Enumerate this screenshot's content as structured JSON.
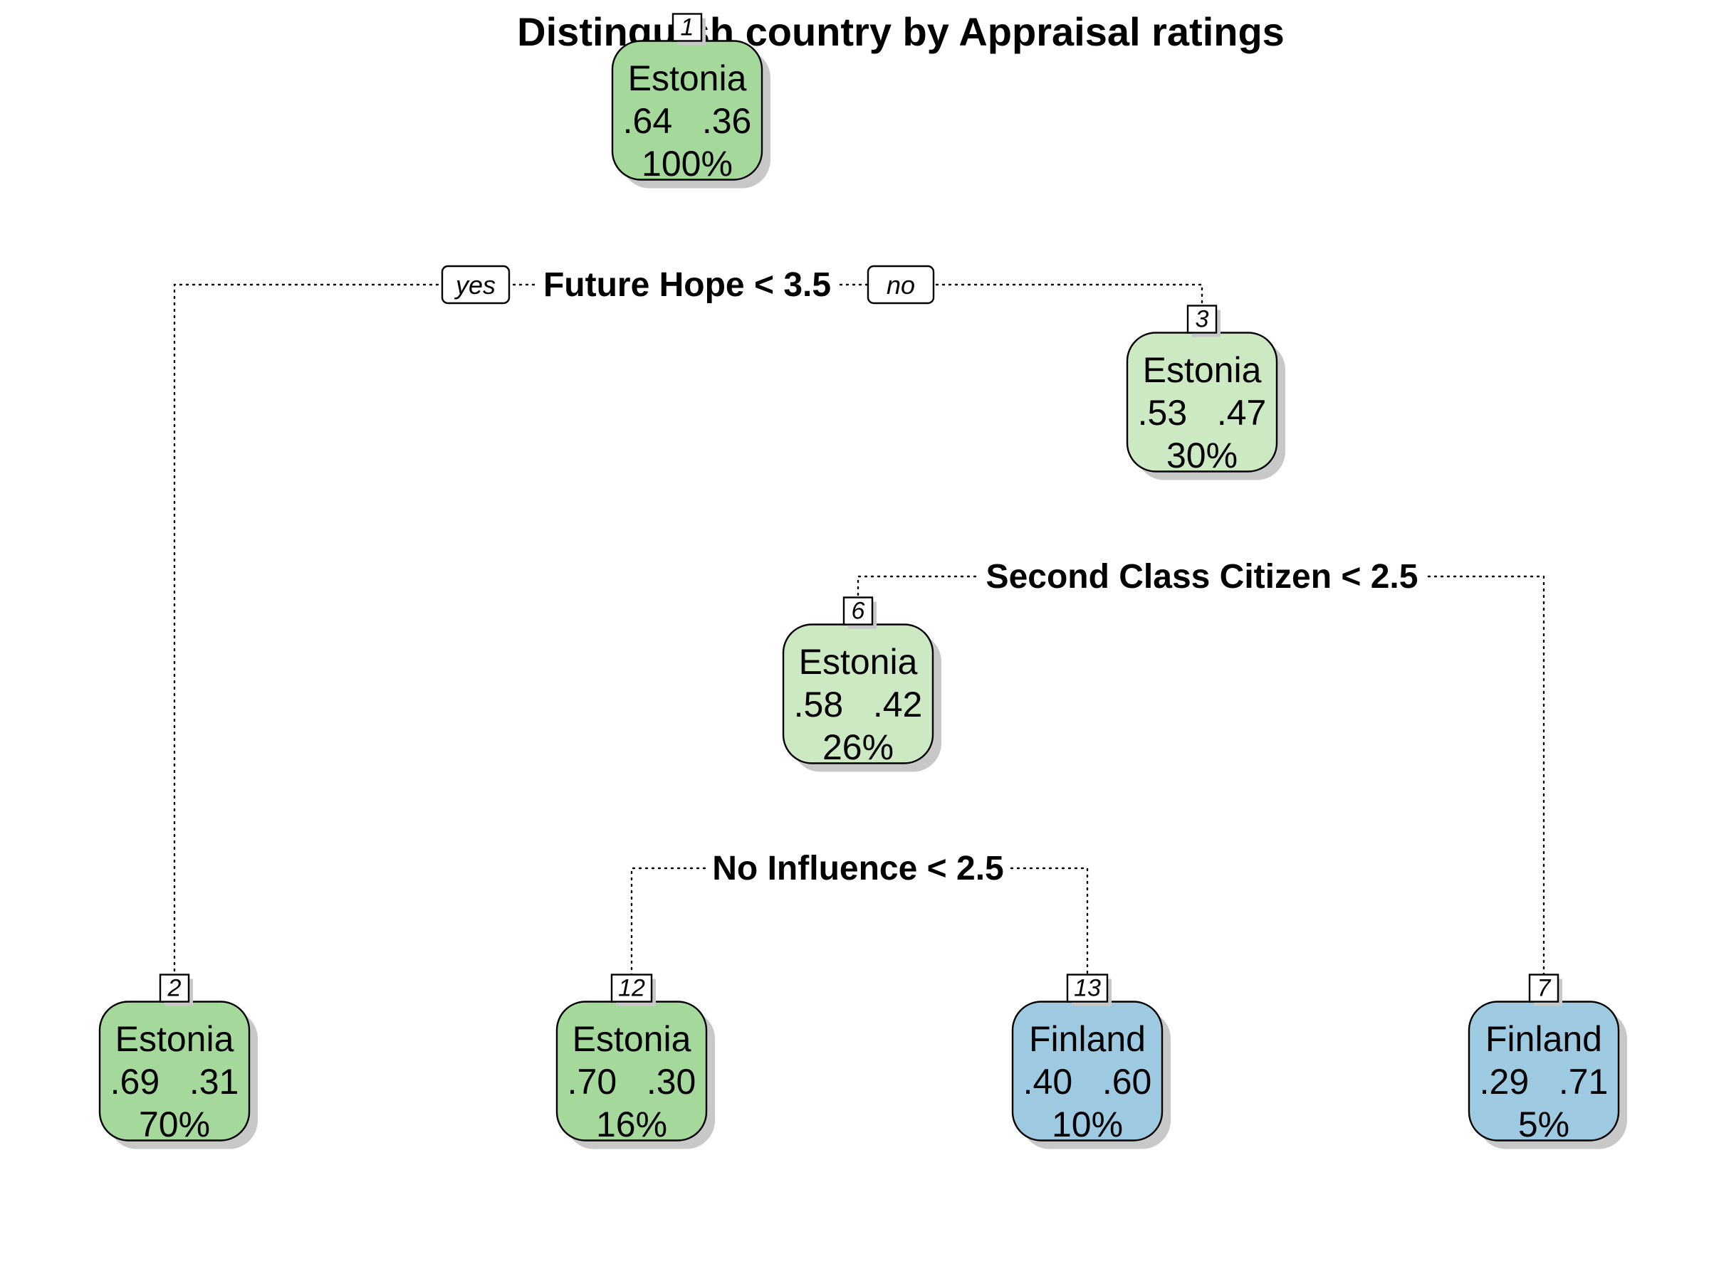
{
  "title": "Distinguish country by Appraisal ratings",
  "colors": {
    "estonia_dark": "#a5d99b",
    "estonia_light": "#cde9c3",
    "finland": "#9ecae1"
  },
  "edge_labels": {
    "yes": "yes",
    "no": "no"
  },
  "nodes": [
    {
      "id": "1",
      "label": "Estonia",
      "probs": ".64   .36",
      "pct": "100%",
      "color": "#a5d99b"
    },
    {
      "id": "3",
      "label": "Estonia",
      "probs": ".53   .47",
      "pct": "30%",
      "color": "#cde9c3"
    },
    {
      "id": "6",
      "label": "Estonia",
      "probs": ".58   .42",
      "pct": "26%",
      "color": "#cde9c3"
    },
    {
      "id": "2",
      "label": "Estonia",
      "probs": ".69   .31",
      "pct": "70%",
      "color": "#a5d99b"
    },
    {
      "id": "12",
      "label": "Estonia",
      "probs": ".70   .30",
      "pct": "16%",
      "color": "#a5d99b"
    },
    {
      "id": "13",
      "label": "Finland",
      "probs": ".40   .60",
      "pct": "10%",
      "color": "#9ecae1"
    },
    {
      "id": "7",
      "label": "Finland",
      "probs": ".29   .71",
      "pct": "5%",
      "color": "#9ecae1"
    }
  ],
  "splits": [
    {
      "node": "1",
      "text": "Future Hope < 3.5"
    },
    {
      "node": "3",
      "text": "Second Class Citizen < 2.5"
    },
    {
      "node": "6",
      "text": "No Influence < 2.5"
    }
  ]
}
